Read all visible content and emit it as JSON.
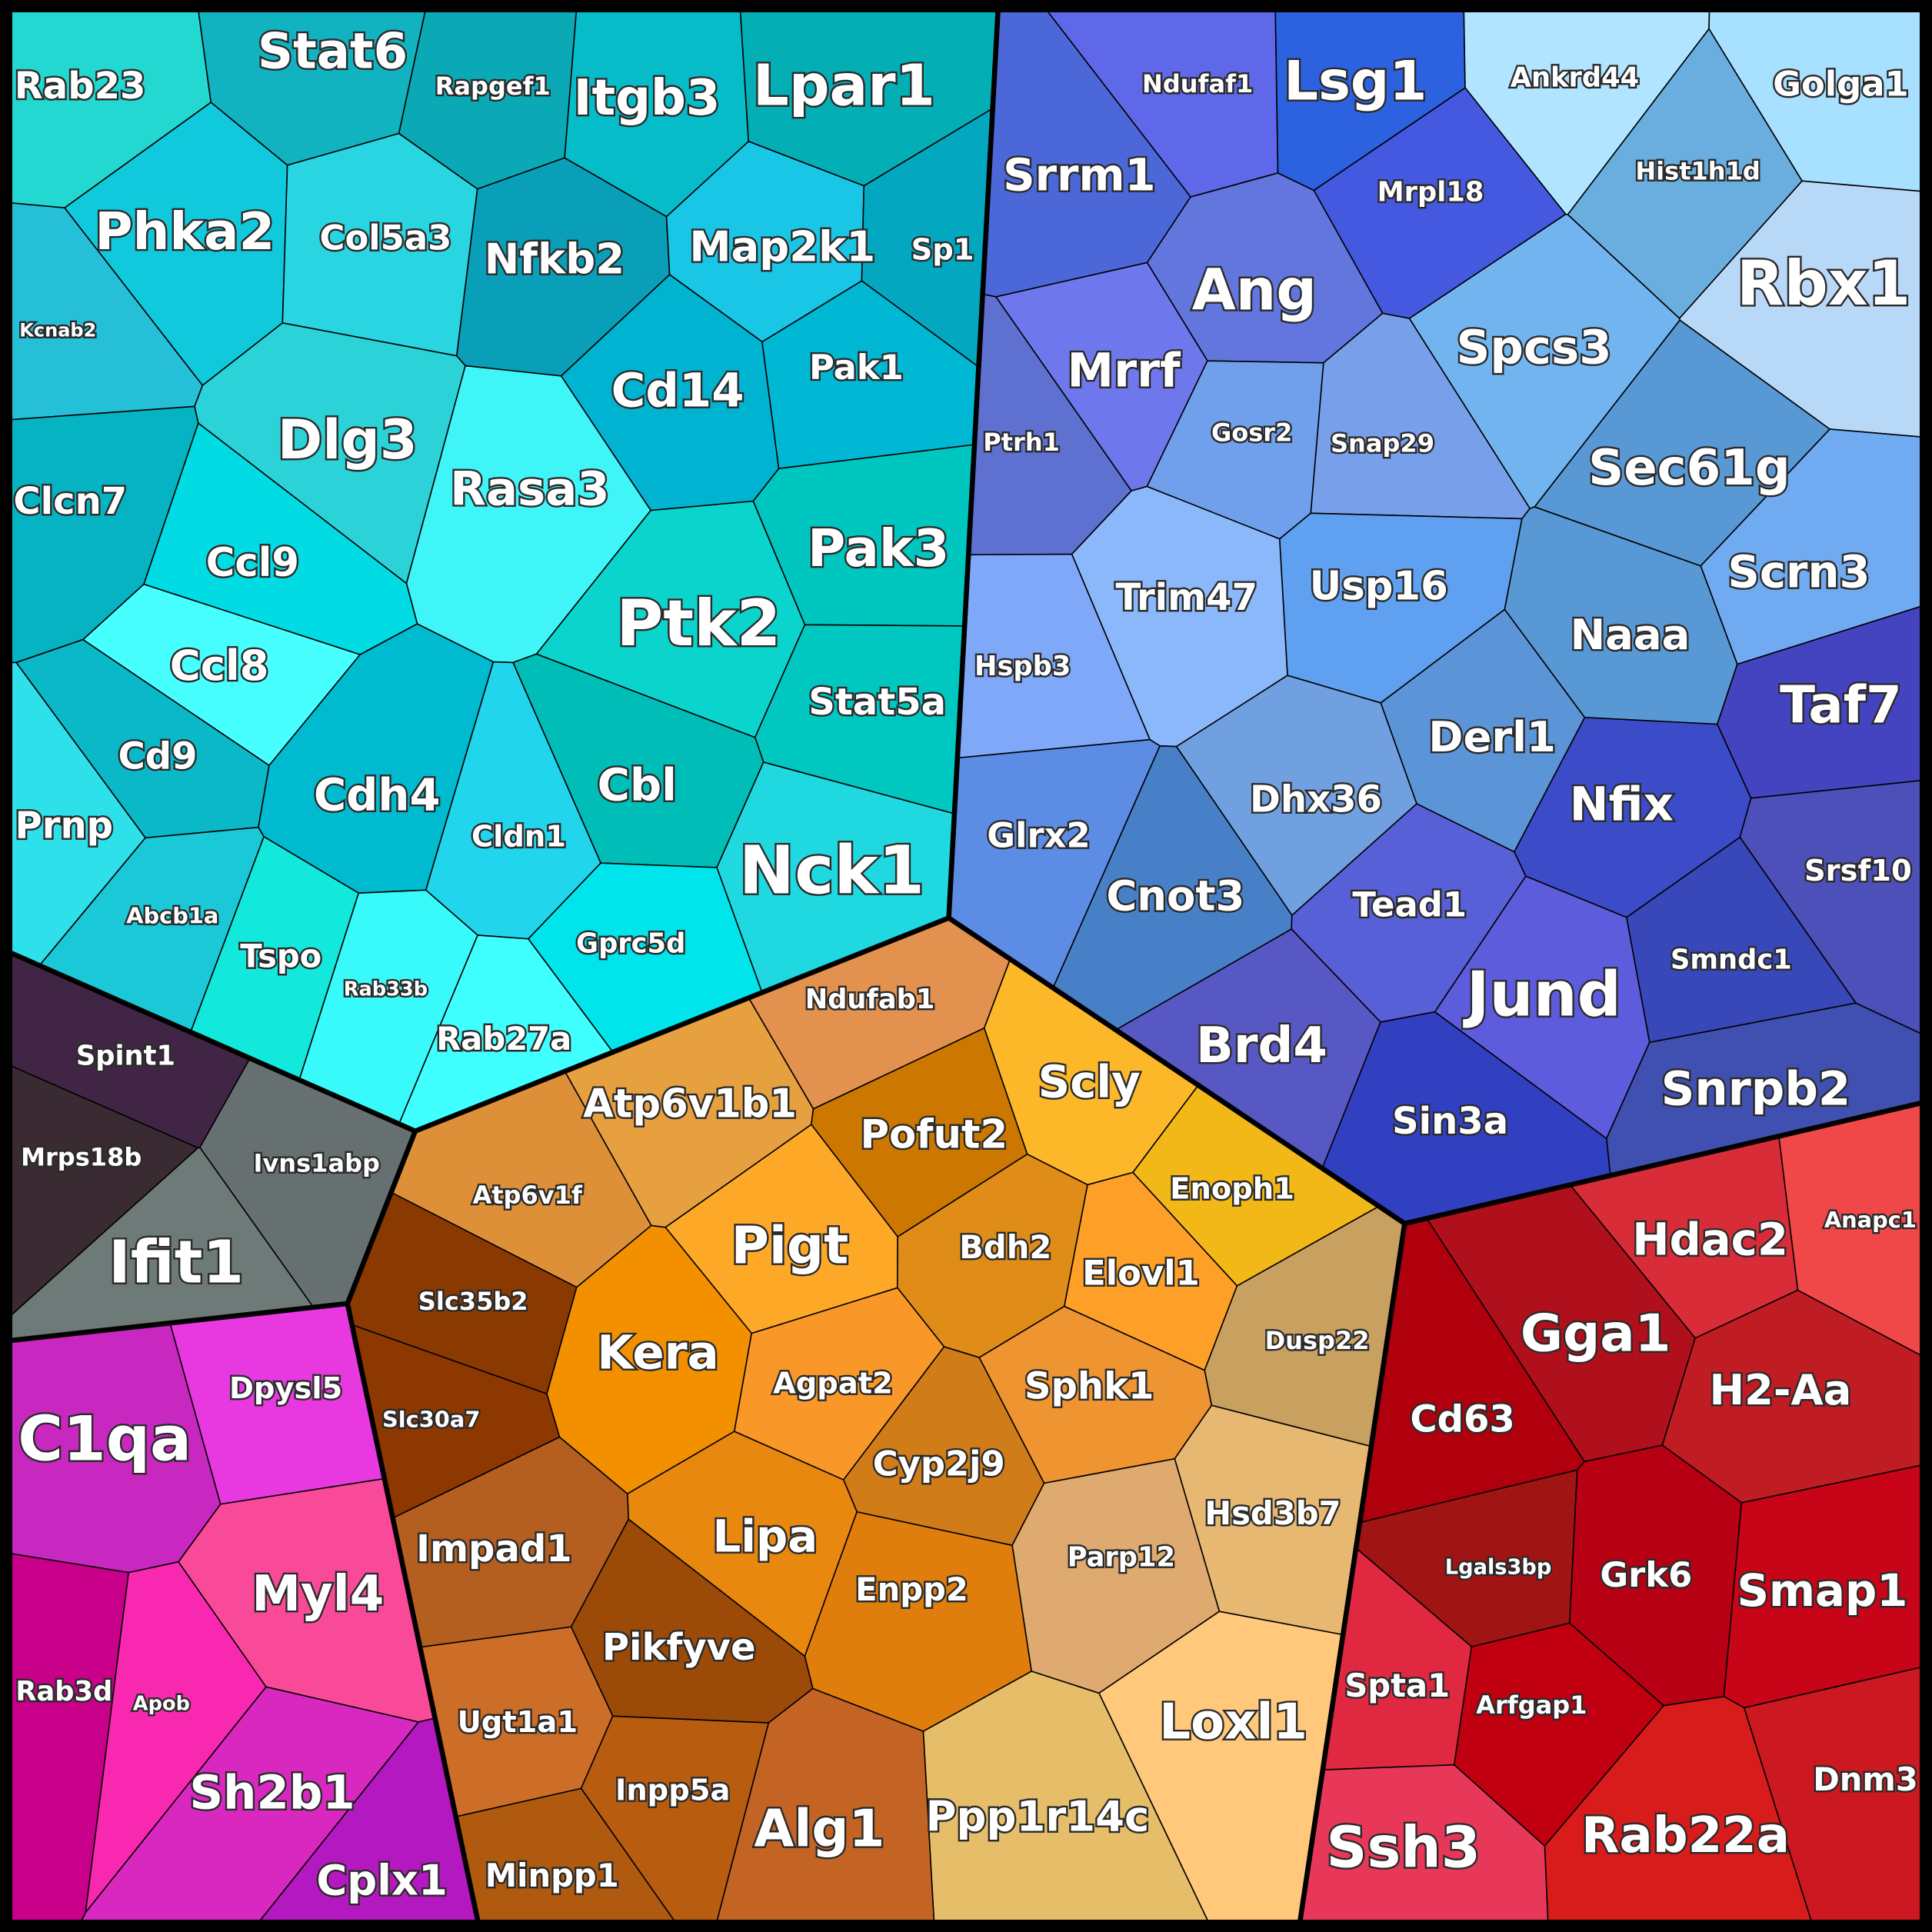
{
  "groups": [
    {
      "cells": [
        {
          "label": "Rab23",
          "color": "#22d8d0"
        },
        {
          "label": "Stat6",
          "color": "#11b3c0"
        },
        {
          "label": "Rapgef1",
          "color": "#0aa9b5"
        },
        {
          "label": "Itgb3",
          "color": "#06bcc8"
        },
        {
          "label": "Lpar1",
          "color": "#04aeb5"
        },
        {
          "label": "Phka2",
          "color": "#11c9dc"
        },
        {
          "label": "Col5a3",
          "color": "#29d5e0"
        },
        {
          "label": "Nfkb2",
          "color": "#0a9fb8"
        },
        {
          "label": "Map2k1",
          "color": "#1ac6e6"
        },
        {
          "label": "Sp1",
          "color": "#03a8c0"
        },
        {
          "label": "Kcnab2",
          "color": "#25bfd8"
        },
        {
          "label": "Dlg3",
          "color": "#2bd3d8"
        },
        {
          "label": "Cd14",
          "color": "#00b3d0"
        },
        {
          "label": "Pak1",
          "color": "#00b7d4"
        },
        {
          "label": "Rasa3",
          "color": "#40f5f8"
        },
        {
          "label": "Clcn7",
          "color": "#06b3c3"
        },
        {
          "label": "Pak3",
          "color": "#00c6c0"
        },
        {
          "label": "Ccl9",
          "color": "#00dbe4"
        },
        {
          "label": "Ptk2",
          "color": "#0ad4cc"
        },
        {
          "label": "Ccl8",
          "color": "#48ffff"
        },
        {
          "label": "Stat5a",
          "color": "#00c8c0"
        },
        {
          "label": "Cd9",
          "color": "#0ab8c8"
        },
        {
          "label": "Cbl",
          "color": "#00bdb8"
        },
        {
          "label": "Cdh4",
          "color": "#00bad0"
        },
        {
          "label": "Prnp",
          "color": "#2ee0ea"
        },
        {
          "label": "Cldn1",
          "color": "#20d5ec"
        },
        {
          "label": "Nck1",
          "color": "#20d8e0"
        },
        {
          "label": "Abcb1a",
          "color": "#1ac8d8"
        },
        {
          "label": "Tspo",
          "color": "#12e8dc"
        },
        {
          "label": "Gprc5d",
          "color": "#00e4ec"
        },
        {
          "label": "Rab33b",
          "color": "#38fafa"
        },
        {
          "label": "Rab27a",
          "color": "#40ffff"
        }
      ]
    },
    {
      "cells": [
        {
          "label": "Spint1",
          "color": "#402545"
        },
        {
          "label": "Mrps18b",
          "color": "#3a2a32"
        },
        {
          "label": "Ivns1abp",
          "color": "#677070"
        },
        {
          "label": "Ifit1",
          "color": "#6e7a78"
        }
      ]
    },
    {
      "cells": [
        {
          "label": "Dpysl5",
          "color": "#e838e0"
        },
        {
          "label": "C1qa",
          "color": "#c828c0"
        },
        {
          "label": "Myl4",
          "color": "#f94a9a"
        },
        {
          "label": "Rab3d",
          "color": "#c8008a"
        },
        {
          "label": "Apob",
          "color": "#f828b0"
        },
        {
          "label": "Sh2b1",
          "color": "#d828c0"
        },
        {
          "label": "Cplx1",
          "color": "#b418c0"
        }
      ]
    },
    {
      "cells": [
        {
          "label": "Ndufab1",
          "color": "#e3914e"
        },
        {
          "label": "Atp6v1b1",
          "color": "#e6a040"
        },
        {
          "label": "Scly",
          "color": "#fdb82a"
        },
        {
          "label": "Pofut2",
          "color": "#cc7800"
        },
        {
          "label": "Atp6v1f",
          "color": "#dd9038"
        },
        {
          "label": "Enoph1",
          "color": "#f2b818"
        },
        {
          "label": "Pigt",
          "color": "#fea828"
        },
        {
          "label": "Slc35b2",
          "color": "#8a3a00"
        },
        {
          "label": "Bdh2",
          "color": "#e08c18"
        },
        {
          "label": "Elovl1",
          "color": "#fea028"
        },
        {
          "label": "Dusp22",
          "color": "#c8a060"
        },
        {
          "label": "Kera",
          "color": "#f29000"
        },
        {
          "label": "Agpat2",
          "color": "#f99828"
        },
        {
          "label": "Sphk1",
          "color": "#ee9430"
        },
        {
          "label": "Slc30a7",
          "color": "#8c3800"
        },
        {
          "label": "Cyp2j9",
          "color": "#d07c18"
        },
        {
          "label": "Hsd3b7",
          "color": "#e6b872"
        },
        {
          "label": "Lipa",
          "color": "#e8880e"
        },
        {
          "label": "Impad1",
          "color": "#b45e20"
        },
        {
          "label": "Parp12",
          "color": "#deaa70"
        },
        {
          "label": "Enpp2",
          "color": "#df7e0c"
        },
        {
          "label": "Pikfyve",
          "color": "#9c4a08"
        },
        {
          "label": "Ugt1a1",
          "color": "#cc6e28"
        },
        {
          "label": "Loxl1",
          "color": "#ffc87a"
        },
        {
          "label": "Inpp5a",
          "color": "#b85c10"
        },
        {
          "label": "Ppp1r14c",
          "color": "#e6bd68"
        },
        {
          "label": "Alg1",
          "color": "#c46424"
        },
        {
          "label": "Minpp1",
          "color": "#b05a10"
        }
      ]
    },
    {
      "cells": [
        {
          "label": "Ndufaf1",
          "color": "#5e68e8"
        },
        {
          "label": "Lsg1",
          "color": "#2c62e0"
        },
        {
          "label": "Ankrd44",
          "color": "#b0e4ff"
        },
        {
          "label": "Golga1",
          "color": "#a8e0ff"
        },
        {
          "label": "Srrm1",
          "color": "#4c68d8"
        },
        {
          "label": "Hist1h1d",
          "color": "#6aaee0"
        },
        {
          "label": "Mrpl18",
          "color": "#4458e0"
        },
        {
          "label": "Ang",
          "color": "#6276de"
        },
        {
          "label": "Rbx1",
          "color": "#b8d8f8"
        },
        {
          "label": "Spcs3",
          "color": "#72b4f0"
        },
        {
          "label": "Mrrf",
          "color": "#6e78ec"
        },
        {
          "label": "Gosr2",
          "color": "#70a0ec"
        },
        {
          "label": "Ptrh1",
          "color": "#5e70d0"
        },
        {
          "label": "Snap29",
          "color": "#78a0ea"
        },
        {
          "label": "Sec61g",
          "color": "#5898d4"
        },
        {
          "label": "Usp16",
          "color": "#60a0f0"
        },
        {
          "label": "Trim47",
          "color": "#8ab8fa"
        },
        {
          "label": "Scrn3",
          "color": "#70aaf0"
        },
        {
          "label": "Naaa",
          "color": "#5898d4"
        },
        {
          "label": "Hspb3",
          "color": "#80a8f8"
        },
        {
          "label": "Taf7",
          "color": "#4444c0"
        },
        {
          "label": "Derl1",
          "color": "#5c94d8"
        },
        {
          "label": "Dhx36",
          "color": "#70a0e0"
        },
        {
          "label": "Nfix",
          "color": "#3c4cc8"
        },
        {
          "label": "Glrx2",
          "color": "#5c8ce4"
        },
        {
          "label": "Srsf10",
          "color": "#4c50b8"
        },
        {
          "label": "Cnot3",
          "color": "#4880c8"
        },
        {
          "label": "Tead1",
          "color": "#5860d8"
        },
        {
          "label": "Smndc1",
          "color": "#3848b8"
        },
        {
          "label": "Jund",
          "color": "#5c5cdc"
        },
        {
          "label": "Brd4",
          "color": "#5858c4"
        },
        {
          "label": "Snrpb2",
          "color": "#4050b0"
        },
        {
          "label": "Sin3a",
          "color": "#3040c0"
        }
      ]
    },
    {
      "cells": [
        {
          "label": "Anapc1",
          "color": "#f04848"
        },
        {
          "label": "Hdac2",
          "color": "#d82c38"
        },
        {
          "label": "Gga1",
          "color": "#b0101c"
        },
        {
          "label": "H2-Aa",
          "color": "#c01c24"
        },
        {
          "label": "Cd63",
          "color": "#b0000e"
        },
        {
          "label": "Lgals3bp",
          "color": "#a01414"
        },
        {
          "label": "Grk6",
          "color": "#b80014"
        },
        {
          "label": "Smap1",
          "color": "#c80418"
        },
        {
          "label": "Spta1",
          "color": "#e02840"
        },
        {
          "label": "Arfgap1",
          "color": "#c00010"
        },
        {
          "label": "Dnm3",
          "color": "#cc1820"
        },
        {
          "label": "Rab22a",
          "color": "#d81c1c"
        },
        {
          "label": "Ssh3",
          "color": "#e8385a"
        }
      ]
    }
  ]
}
